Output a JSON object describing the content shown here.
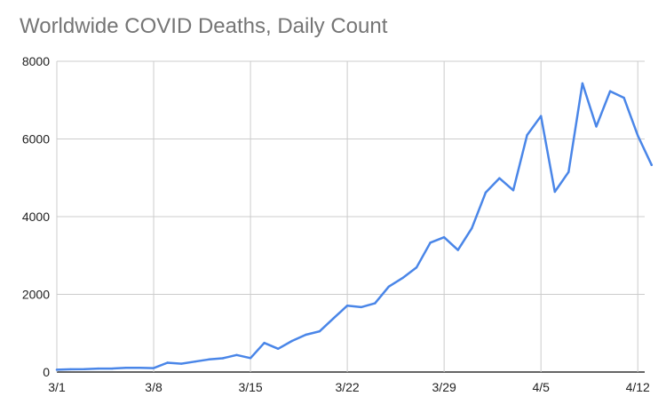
{
  "chart_data": {
    "type": "line",
    "title": "Worldwide COVID Deaths, Daily Count",
    "xlabel": "",
    "ylabel": "",
    "ylim": [
      0,
      8000
    ],
    "y_ticks": [
      "0",
      "2000",
      "4000",
      "6000",
      "8000"
    ],
    "x_ticks": [
      "3/1",
      "3/8",
      "3/15",
      "3/22",
      "3/29",
      "4/5",
      "4/12"
    ],
    "x_tick_index": [
      0,
      7,
      14,
      21,
      28,
      35,
      42
    ],
    "grid": true,
    "legend": "none",
    "series_color": "#4a86e8",
    "series": [
      {
        "values": [
          60,
          70,
          75,
          90,
          90,
          110,
          110,
          100,
          240,
          215,
          270,
          325,
          355,
          440,
          360,
          750,
          600,
          800,
          960,
          1050,
          1380,
          1710,
          1670,
          1770,
          2200,
          2420,
          2690,
          3330,
          3470,
          3140,
          3700,
          4620,
          4990,
          4680,
          6100,
          6590,
          4640,
          5150,
          7430,
          6320,
          7230,
          7060,
          6090,
          5330
        ]
      }
    ]
  }
}
